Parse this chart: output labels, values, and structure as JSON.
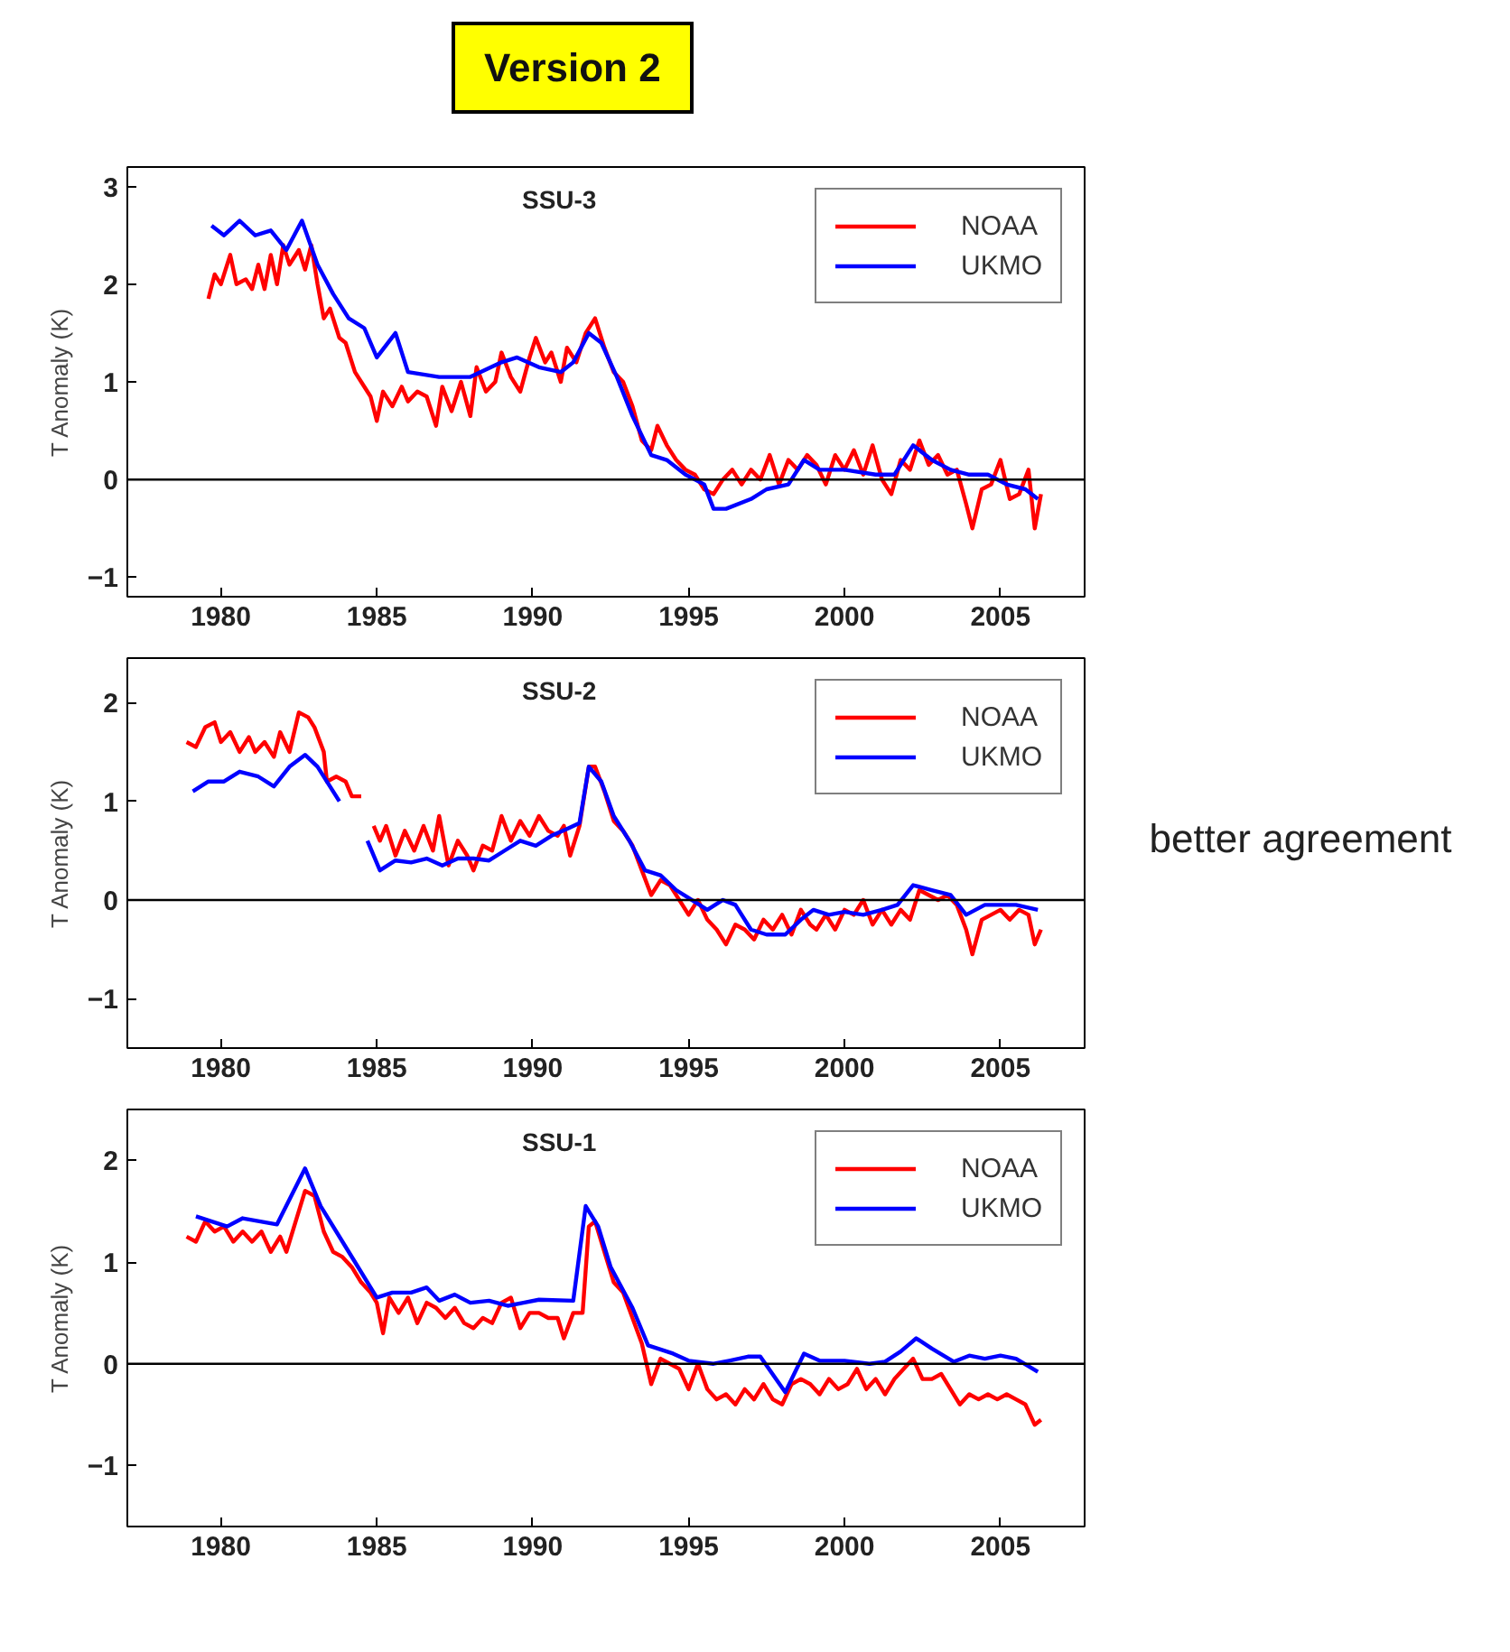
{
  "chart_data": [
    {
      "type": "line",
      "title": "SSU-3",
      "annotations": [
        "Version 2"
      ],
      "ylabel": "T Anomaly (K)",
      "xlim": [
        1977,
        2007.7
      ],
      "ylim": [
        -1.2,
        3.2
      ],
      "xticks": [
        1980,
        1985,
        1990,
        1995,
        2000,
        2005
      ],
      "yticks": [
        -1,
        0,
        1,
        2,
        3
      ],
      "grid": false,
      "legend": "top right",
      "ref_lines": [
        {
          "axis": "y",
          "value": 0,
          "label": null,
          "color": "#000000"
        }
      ],
      "series": [
        {
          "name": "NOAA",
          "color": "#ff0000",
          "x": [
            1979.6,
            1979.8,
            1980.0,
            1980.3,
            1980.5,
            1980.8,
            1981.0,
            1981.2,
            1981.4,
            1981.6,
            1981.8,
            1982.0,
            1982.2,
            1982.5,
            1982.7,
            1982.9,
            1983.1,
            1983.3,
            1983.5,
            1983.8,
            1984.0,
            1984.3,
            1984.5,
            1984.8,
            1985.0,
            1985.2,
            1985.5,
            1985.8,
            1986.0,
            1986.3,
            1986.6,
            1986.9,
            1987.1,
            1987.4,
            1987.7,
            1988.0,
            1988.2,
            1988.5,
            1988.8,
            1989.0,
            1989.3,
            1989.6,
            1989.9,
            1990.1,
            1990.4,
            1990.6,
            1990.9,
            1991.1,
            1991.4,
            1991.7,
            1992.0,
            1992.3,
            1992.6,
            1992.9,
            1993.2,
            1993.5,
            1993.8,
            1994.0,
            1994.3,
            1994.6,
            1994.9,
            1995.2,
            1995.5,
            1995.8,
            1996.1,
            1996.4,
            1996.7,
            1997.0,
            1997.3,
            1997.6,
            1997.9,
            1998.2,
            1998.5,
            1998.8,
            1999.1,
            1999.4,
            1999.7,
            2000.0,
            2000.3,
            2000.6,
            2000.9,
            2001.2,
            2001.5,
            2001.8,
            2002.1,
            2002.4,
            2002.7,
            2003.0,
            2003.3,
            2003.6,
            2003.9,
            2004.1,
            2004.4,
            2004.7,
            2005.0,
            2005.3,
            2005.6,
            2005.9,
            2006.1,
            2006.3
          ],
          "values": [
            1.85,
            2.1,
            2.0,
            2.3,
            2.0,
            2.05,
            1.95,
            2.2,
            1.95,
            2.3,
            2.0,
            2.4,
            2.2,
            2.35,
            2.15,
            2.4,
            2.0,
            1.65,
            1.75,
            1.45,
            1.4,
            1.1,
            1.0,
            0.85,
            0.6,
            0.9,
            0.75,
            0.95,
            0.8,
            0.9,
            0.85,
            0.55,
            0.95,
            0.7,
            1.0,
            0.65,
            1.15,
            0.9,
            1.0,
            1.3,
            1.05,
            0.9,
            1.25,
            1.45,
            1.2,
            1.3,
            1.0,
            1.35,
            1.2,
            1.5,
            1.65,
            1.35,
            1.1,
            1.0,
            0.75,
            0.4,
            0.3,
            0.55,
            0.35,
            0.2,
            0.1,
            0.05,
            -0.1,
            -0.15,
            0.0,
            0.1,
            -0.05,
            0.1,
            0.0,
            0.25,
            -0.05,
            0.2,
            0.1,
            0.25,
            0.15,
            -0.05,
            0.25,
            0.1,
            0.3,
            0.05,
            0.35,
            0.0,
            -0.15,
            0.2,
            0.1,
            0.4,
            0.15,
            0.25,
            0.05,
            0.1,
            -0.25,
            -0.5,
            -0.1,
            -0.05,
            0.2,
            -0.2,
            -0.15,
            0.1,
            -0.5,
            -0.15
          ]
        },
        {
          "name": "UKMO",
          "color": "#0000ff",
          "x": [
            1979.7,
            1980.1,
            1980.6,
            1981.1,
            1981.6,
            1982.1,
            1982.6,
            1983.1,
            1983.6,
            1984.1,
            1984.6,
            1985.0,
            1985.6,
            1986.0,
            1987.0,
            1988.0,
            1989.0,
            1989.5,
            1990.2,
            1990.9,
            1991.3,
            1991.8,
            1992.2,
            1992.7,
            1993.2,
            1993.8,
            1994.3,
            1994.9,
            1995.5,
            1995.8,
            1996.2,
            1997.0,
            1997.5,
            1998.2,
            1998.7,
            1999.2,
            2000.0,
            2001.0,
            2001.6,
            2002.2,
            2002.8,
            2003.4,
            2004.0,
            2004.6,
            2005.2,
            2005.8,
            2006.2
          ],
          "values": [
            2.6,
            2.5,
            2.65,
            2.5,
            2.55,
            2.35,
            2.65,
            2.2,
            1.9,
            1.65,
            1.55,
            1.25,
            1.5,
            1.1,
            1.05,
            1.05,
            1.2,
            1.25,
            1.15,
            1.1,
            1.2,
            1.5,
            1.4,
            1.05,
            0.65,
            0.25,
            0.2,
            0.05,
            -0.05,
            -0.3,
            -0.3,
            -0.2,
            -0.1,
            -0.05,
            0.2,
            0.1,
            0.1,
            0.05,
            0.05,
            0.35,
            0.2,
            0.1,
            0.05,
            0.05,
            -0.05,
            -0.1,
            -0.2
          ]
        }
      ]
    },
    {
      "type": "line",
      "title": "SSU-2",
      "annotations": [
        "better agreement"
      ],
      "ylabel": "T Anomaly (K)",
      "xlim": [
        1977,
        2007.7
      ],
      "ylim": [
        -1.5,
        2.45
      ],
      "xticks": [
        1980,
        1985,
        1990,
        1995,
        2000,
        2005
      ],
      "yticks": [
        -1,
        0,
        1,
        2
      ],
      "grid": false,
      "legend": "top right",
      "ref_lines": [
        {
          "axis": "y",
          "value": 0,
          "label": null,
          "color": "#000000"
        }
      ],
      "series": [
        {
          "name": "NOAA",
          "color": "#ff0000",
          "x": [
            1978.9,
            1979.2,
            1979.5,
            1979.8,
            1980.0,
            1980.3,
            1980.6,
            1980.9,
            1981.1,
            1981.4,
            1981.7,
            1981.9,
            1982.2,
            1982.5,
            1982.8,
            1983.0,
            1983.3,
            1983.4,
            1983.7,
            1984.0,
            1984.2,
            1984.5,
            1984.7,
            1984.9,
            1985.1,
            1985.3,
            1985.6,
            1985.9,
            1986.2,
            1986.5,
            1986.8,
            1987.0,
            1987.3,
            1987.6,
            1987.9,
            1988.1,
            1988.4,
            1988.7,
            1989.0,
            1989.3,
            1989.6,
            1989.9,
            1990.2,
            1990.5,
            1990.8,
            1991.0,
            1991.2,
            1991.5,
            1991.8,
            1992.0,
            1992.3,
            1992.6,
            1992.9,
            1993.2,
            1993.5,
            1993.8,
            1994.1,
            1994.4,
            1994.7,
            1995.0,
            1995.3,
            1995.6,
            1995.9,
            1996.2,
            1996.5,
            1996.8,
            1997.1,
            1997.4,
            1997.7,
            1998.0,
            1998.3,
            1998.6,
            1998.9,
            1999.1,
            1999.4,
            1999.7,
            2000.0,
            2000.3,
            2000.6,
            2000.9,
            2001.2,
            2001.5,
            2001.8,
            2002.1,
            2002.4,
            2002.7,
            2003.0,
            2003.3,
            2003.6,
            2003.9,
            2004.1,
            2004.4,
            2004.7,
            2005.0,
            2005.3,
            2005.6,
            2005.9,
            2006.1,
            2006.3
          ],
          "values": [
            1.6,
            1.55,
            1.75,
            1.8,
            1.6,
            1.7,
            1.5,
            1.65,
            1.5,
            1.6,
            1.45,
            1.7,
            1.5,
            1.9,
            1.85,
            1.75,
            1.5,
            1.2,
            1.25,
            1.2,
            1.05,
            1.05,
            null,
            0.75,
            0.6,
            0.75,
            0.45,
            0.7,
            0.5,
            0.75,
            0.5,
            0.85,
            0.35,
            0.6,
            0.45,
            0.3,
            0.55,
            0.5,
            0.85,
            0.6,
            0.8,
            0.65,
            0.85,
            0.7,
            0.65,
            0.75,
            0.45,
            0.75,
            1.35,
            1.35,
            1.1,
            0.8,
            0.7,
            0.55,
            0.3,
            0.05,
            0.2,
            0.15,
            0.0,
            -0.15,
            0.0,
            -0.2,
            -0.3,
            -0.45,
            -0.25,
            -0.3,
            -0.4,
            -0.2,
            -0.3,
            -0.15,
            -0.35,
            -0.1,
            -0.25,
            -0.3,
            -0.15,
            -0.3,
            -0.1,
            -0.15,
            0.0,
            -0.25,
            -0.1,
            -0.25,
            -0.1,
            -0.2,
            0.1,
            0.05,
            0.0,
            0.05,
            -0.05,
            -0.3,
            -0.55,
            -0.2,
            -0.15,
            -0.1,
            -0.2,
            -0.1,
            -0.15,
            -0.45,
            -0.3
          ]
        },
        {
          "name": "UKMO",
          "color": "#0000ff",
          "x": [
            1979.1,
            1979.6,
            1980.1,
            1980.6,
            1981.2,
            1981.7,
            1982.2,
            1982.7,
            1983.1,
            1983.8,
            1984.2,
            1984.7,
            1985.1,
            1985.6,
            1986.1,
            1986.6,
            1987.1,
            1987.6,
            1988.1,
            1988.6,
            1989.1,
            1989.6,
            1990.1,
            1990.6,
            1991.1,
            1991.5,
            1991.8,
            1992.2,
            1992.6,
            1993.1,
            1993.6,
            1994.1,
            1994.6,
            1995.1,
            1995.6,
            1996.1,
            1996.5,
            1997.0,
            1997.5,
            1998.1,
            1998.6,
            1999.0,
            1999.5,
            2000.0,
            2000.6,
            2001.2,
            2001.7,
            2002.2,
            2002.8,
            2003.4,
            2003.9,
            2004.5,
            2005.0,
            2005.5,
            2006.2
          ],
          "values": [
            1.1,
            1.2,
            1.2,
            1.3,
            1.25,
            1.15,
            1.35,
            1.47,
            1.35,
            1.0,
            null,
            0.6,
            0.3,
            0.4,
            0.38,
            0.42,
            0.35,
            0.42,
            0.42,
            0.4,
            0.5,
            0.6,
            0.55,
            0.65,
            0.72,
            0.78,
            1.35,
            1.2,
            0.85,
            0.6,
            0.3,
            0.25,
            0.1,
            0.0,
            -0.1,
            0.0,
            -0.05,
            -0.3,
            -0.35,
            -0.35,
            -0.2,
            -0.1,
            -0.15,
            -0.12,
            -0.15,
            -0.1,
            -0.05,
            0.15,
            0.1,
            0.05,
            -0.15,
            -0.05,
            -0.05,
            -0.05,
            -0.1
          ]
        }
      ]
    },
    {
      "type": "line",
      "title": "SSU-1",
      "ylabel": "T Anomaly (K)",
      "xlim": [
        1977,
        2007.7
      ],
      "ylim": [
        -1.6,
        2.5
      ],
      "xticks": [
        1980,
        1985,
        1990,
        1995,
        2000,
        2005
      ],
      "yticks": [
        -1,
        0,
        1,
        2
      ],
      "grid": false,
      "legend": "top right",
      "ref_lines": [
        {
          "axis": "y",
          "value": 0,
          "label": null,
          "color": "#000000"
        }
      ],
      "series": [
        {
          "name": "NOAA",
          "color": "#ff0000",
          "x": [
            1978.9,
            1979.2,
            1979.5,
            1979.8,
            1980.1,
            1980.4,
            1980.7,
            1981.0,
            1981.3,
            1981.6,
            1981.9,
            1982.1,
            1982.4,
            1982.7,
            1983.0,
            1983.3,
            1983.6,
            1983.9,
            1984.2,
            1984.5,
            1984.8,
            1985.0,
            1985.2,
            1985.4,
            1985.7,
            1986.0,
            1986.3,
            1986.6,
            1986.9,
            1987.2,
            1987.5,
            1987.8,
            1988.1,
            1988.4,
            1988.7,
            1989.0,
            1989.3,
            1989.6,
            1989.9,
            1990.2,
            1990.5,
            1990.8,
            1991.0,
            1991.3,
            1991.6,
            1991.8,
            1992.0,
            1992.3,
            1992.6,
            1992.9,
            1993.2,
            1993.5,
            1993.8,
            1994.1,
            1994.4,
            1994.7,
            1995.0,
            1995.3,
            1995.6,
            1995.9,
            1996.2,
            1996.5,
            1996.8,
            1997.1,
            1997.4,
            1997.7,
            1998.0,
            1998.3,
            1998.6,
            1998.9,
            1999.2,
            1999.5,
            1999.8,
            2000.1,
            2000.4,
            2000.7,
            2001.0,
            2001.3,
            2001.6,
            2001.9,
            2002.2,
            2002.5,
            2002.8,
            2003.1,
            2003.4,
            2003.7,
            2004.0,
            2004.3,
            2004.6,
            2004.9,
            2005.2,
            2005.5,
            2005.8,
            2006.1,
            2006.3
          ],
          "values": [
            1.25,
            1.2,
            1.4,
            1.3,
            1.35,
            1.2,
            1.3,
            1.2,
            1.3,
            1.1,
            1.25,
            1.1,
            1.4,
            1.7,
            1.65,
            1.3,
            1.1,
            1.05,
            0.95,
            0.8,
            0.7,
            0.6,
            0.3,
            0.65,
            0.5,
            0.65,
            0.4,
            0.6,
            0.55,
            0.45,
            0.55,
            0.4,
            0.35,
            0.45,
            0.4,
            0.6,
            0.65,
            0.35,
            0.5,
            0.5,
            0.45,
            0.45,
            0.25,
            0.5,
            0.5,
            1.35,
            1.4,
            1.1,
            0.8,
            0.7,
            0.45,
            0.2,
            -0.2,
            0.05,
            0.0,
            -0.05,
            -0.25,
            0.0,
            -0.25,
            -0.35,
            -0.3,
            -0.4,
            -0.25,
            -0.35,
            -0.2,
            -0.35,
            -0.4,
            -0.2,
            -0.15,
            -0.2,
            -0.3,
            -0.15,
            -0.25,
            -0.2,
            -0.05,
            -0.25,
            -0.15,
            -0.3,
            -0.15,
            -0.05,
            0.05,
            -0.15,
            -0.15,
            -0.1,
            -0.25,
            -0.4,
            -0.3,
            -0.35,
            -0.3,
            -0.35,
            -0.3,
            -0.35,
            -0.4,
            -0.6,
            -0.55
          ]
        },
        {
          "name": "UKMO",
          "color": "#0000ff",
          "x": [
            1979.2,
            1980.2,
            1980.7,
            1981.8,
            1982.7,
            1983.2,
            1984.1,
            1985.0,
            1985.5,
            1986.1,
            1986.6,
            1987.0,
            1987.5,
            1988.0,
            1988.6,
            1989.2,
            1989.7,
            1990.2,
            1991.3,
            1991.7,
            1992.1,
            1992.5,
            1993.2,
            1993.7,
            1994.5,
            1995.0,
            1995.8,
            1996.3,
            1996.9,
            1997.3,
            1998.1,
            1998.7,
            1999.2,
            2000.0,
            2000.8,
            2001.3,
            2001.8,
            2002.3,
            2002.8,
            2003.5,
            2004.0,
            2004.5,
            2005.0,
            2005.5,
            2006.2
          ],
          "values": [
            1.45,
            1.35,
            1.43,
            1.37,
            1.92,
            1.55,
            1.1,
            0.65,
            0.7,
            0.7,
            0.75,
            0.62,
            0.68,
            0.6,
            0.62,
            0.57,
            0.6,
            0.63,
            0.62,
            1.55,
            1.35,
            0.95,
            0.55,
            0.18,
            0.1,
            0.03,
            0.0,
            0.03,
            0.07,
            0.07,
            -0.28,
            0.1,
            0.03,
            0.03,
            0.0,
            0.02,
            0.12,
            0.25,
            0.15,
            0.02,
            0.08,
            0.05,
            0.08,
            0.05,
            -0.08
          ]
        }
      ]
    }
  ]
}
